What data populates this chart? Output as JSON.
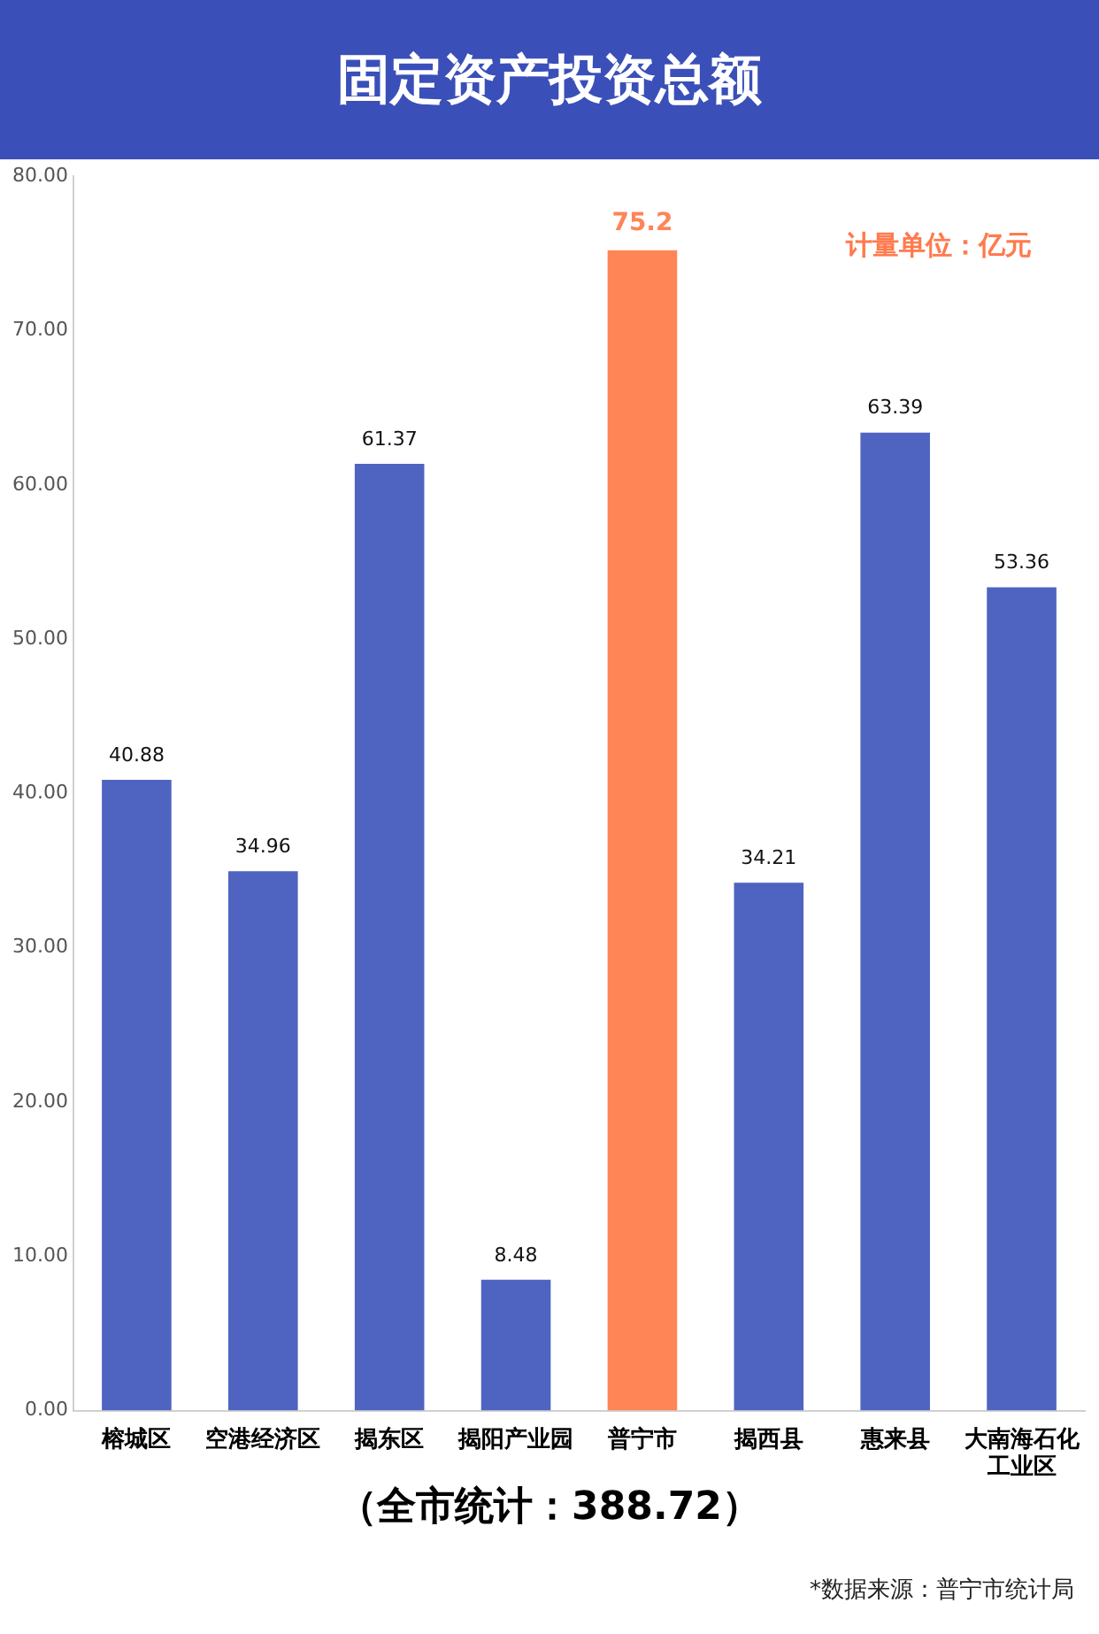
{
  "chart_data": {
    "type": "bar",
    "title": "固定资产投资总额",
    "categories": [
      "榕城区",
      "空港经济区",
      "揭东区",
      "揭阳产业园",
      "普宁市",
      "揭西县",
      "惠来县",
      "大南海石化工业区"
    ],
    "values": [
      40.88,
      34.96,
      61.37,
      8.48,
      75.2,
      34.21,
      63.39,
      53.36
    ],
    "colors": [
      "#4f63c0",
      "#4f63c0",
      "#4f63c0",
      "#4f63c0",
      "#ff8456",
      "#4f63c0",
      "#4f63c0",
      "#4f63c0"
    ],
    "ylim": [
      0,
      80
    ],
    "yticks": [
      {
        "value": 0,
        "label": "0.00"
      },
      {
        "value": 10,
        "label": "10.00"
      },
      {
        "value": 20,
        "label": "20.00"
      },
      {
        "value": 30,
        "label": "30.00"
      },
      {
        "value": 40,
        "label": "40.00"
      },
      {
        "value": 50,
        "label": "50.00"
      },
      {
        "value": 60,
        "label": "60.00"
      },
      {
        "value": 70,
        "label": "70.00"
      },
      {
        "value": 80,
        "label": "80.00"
      }
    ],
    "grid": false,
    "data_labels": true,
    "annotations": [
      "计量单位：亿元",
      "（全市统计：388.72）",
      "*数据来源：普宁市统计局"
    ]
  }
}
